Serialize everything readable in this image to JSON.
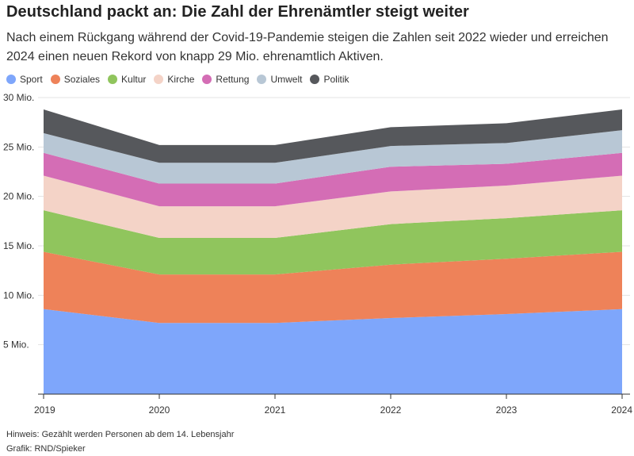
{
  "header": {
    "title": "Deutschland packt an: Die Zahl der Ehrenämtler steigt weiter",
    "subtitle": "Nach einem Rückgang während der Covid-19-Pandemie steigen die Zahlen seit 2022 wieder und erreichen 2024 einen neuen Rekord von knapp 29 Mio. ehrenamtlich Aktiven."
  },
  "footer": {
    "note": "Hinweis: Gezählt werden Personen ab dem 14. Lebensjahr",
    "source": "Grafik: RND/Spieker"
  },
  "chart_data": {
    "type": "area",
    "stacked": true,
    "categories": [
      "2019",
      "2020",
      "2021",
      "2022",
      "2023",
      "2024"
    ],
    "ylim": [
      0,
      30
    ],
    "yticks": [
      {
        "value": 5,
        "label": "5 Mio."
      },
      {
        "value": 10,
        "label": "10 Mio."
      },
      {
        "value": 15,
        "label": "15 Mio."
      },
      {
        "value": 20,
        "label": "20 Mio."
      },
      {
        "value": 25,
        "label": "25 Mio."
      },
      {
        "value": 30,
        "label": "30 Mio."
      }
    ],
    "grid": true,
    "legend_position": "top-left",
    "series": [
      {
        "name": "Sport",
        "color": "#7ea6fb",
        "values": [
          8.6,
          7.2,
          7.2,
          7.7,
          8.1,
          8.6
        ]
      },
      {
        "name": "Soziales",
        "color": "#ee8259",
        "values": [
          5.8,
          4.9,
          4.9,
          5.4,
          5.6,
          5.8
        ]
      },
      {
        "name": "Kultur",
        "color": "#90c55d",
        "values": [
          4.2,
          3.7,
          3.7,
          4.1,
          4.1,
          4.2
        ]
      },
      {
        "name": "Kirche",
        "color": "#f4d3c7",
        "values": [
          3.5,
          3.2,
          3.2,
          3.3,
          3.3,
          3.5
        ]
      },
      {
        "name": "Rettung",
        "color": "#d46db5",
        "values": [
          2.3,
          2.3,
          2.3,
          2.5,
          2.2,
          2.3
        ]
      },
      {
        "name": "Umwelt",
        "color": "#b8c7d5",
        "values": [
          2.0,
          2.1,
          2.1,
          2.1,
          2.1,
          2.3
        ]
      },
      {
        "name": "Politik",
        "color": "#56585c",
        "values": [
          2.4,
          1.8,
          1.8,
          1.9,
          2.0,
          2.1
        ]
      }
    ]
  }
}
